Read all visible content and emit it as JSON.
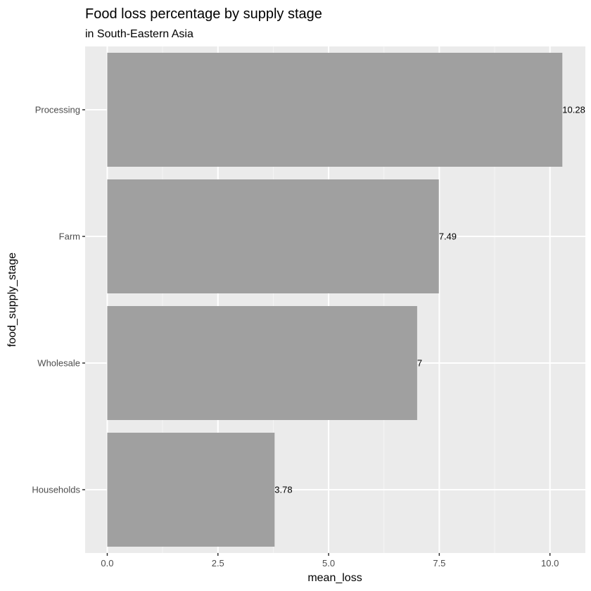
{
  "chart_data": {
    "type": "bar",
    "orientation": "horizontal",
    "title": "Food loss percentage by supply stage",
    "subtitle": "in South-Eastern Asia",
    "xlabel": "mean_loss",
    "ylabel": "food_supply_stage",
    "categories": [
      "Processing",
      "Farm",
      "Wholesale",
      "Households"
    ],
    "values": [
      10.28,
      7.49,
      7,
      3.78
    ],
    "data_labels": [
      "10.28",
      "7.49",
      "7",
      "3.78"
    ],
    "xlim": [
      -0.5,
      10.8
    ],
    "x_ticks": [
      0,
      2.5,
      5,
      7.5,
      10
    ],
    "x_tick_labels": [
      "0.0",
      "2.5",
      "5.0",
      "7.5",
      "10.0"
    ],
    "grid": true,
    "colors": {
      "bar": "#a0a0a0",
      "panel_background": "#ebebeb",
      "grid_major": "#ffffff",
      "grid_minor": "#f5f5f5"
    }
  }
}
